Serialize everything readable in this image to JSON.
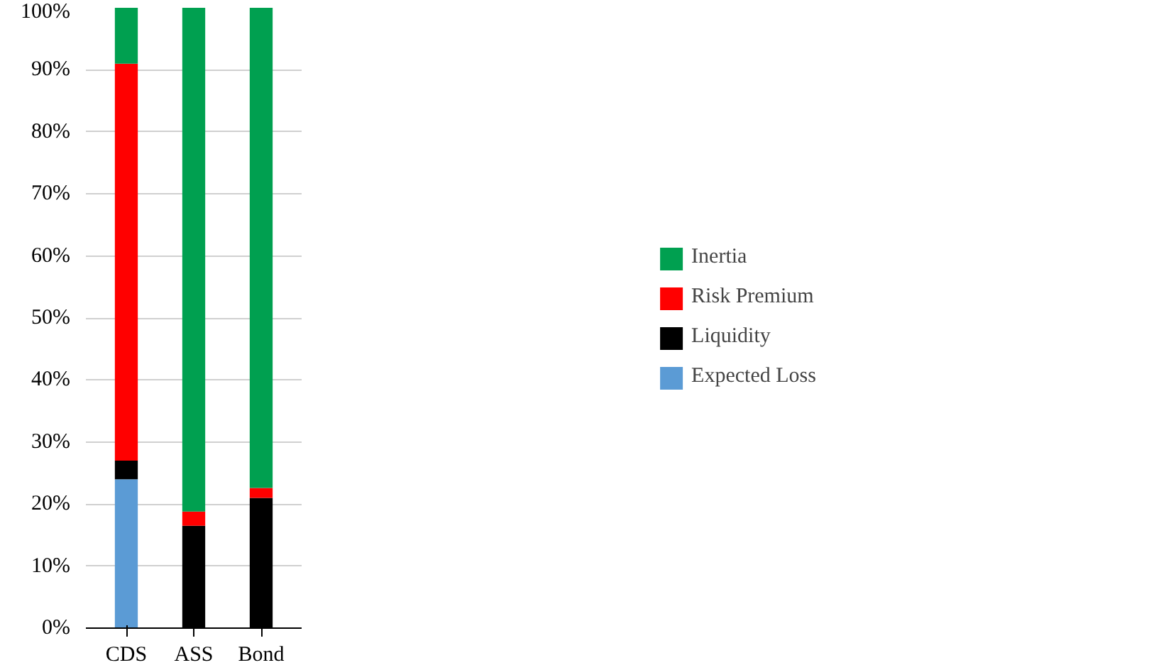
{
  "chart_data": {
    "type": "bar",
    "stacked": true,
    "categories": [
      "CDS",
      "ASS",
      "Bond"
    ],
    "series": [
      {
        "name": "Expected Loss",
        "color": "#5b9bd5",
        "values": [
          24,
          0,
          0
        ]
      },
      {
        "name": "Liquidity",
        "color": "#000000",
        "values": [
          3,
          16.5,
          21
        ]
      },
      {
        "name": "Risk Premium",
        "color": "#ff0000",
        "values": [
          64,
          2.3,
          1.6
        ]
      },
      {
        "name": "Inertia",
        "color": "#00a050",
        "values": [
          9,
          81.2,
          77.4
        ]
      }
    ],
    "ylim": [
      0,
      100
    ],
    "yticks": [
      {
        "value": 0,
        "label": "0%"
      },
      {
        "value": 10,
        "label": "10%"
      },
      {
        "value": 20,
        "label": "20%"
      },
      {
        "value": 30,
        "label": "30%"
      },
      {
        "value": 40,
        "label": "40%"
      },
      {
        "value": 50,
        "label": "50%"
      },
      {
        "value": 60,
        "label": "60%"
      },
      {
        "value": 70,
        "label": "70%"
      },
      {
        "value": 80,
        "label": "80%"
      },
      {
        "value": 90,
        "label": "90%"
      },
      {
        "value": 100,
        "label": "100%"
      }
    ],
    "grid": "y",
    "legend": "right"
  }
}
